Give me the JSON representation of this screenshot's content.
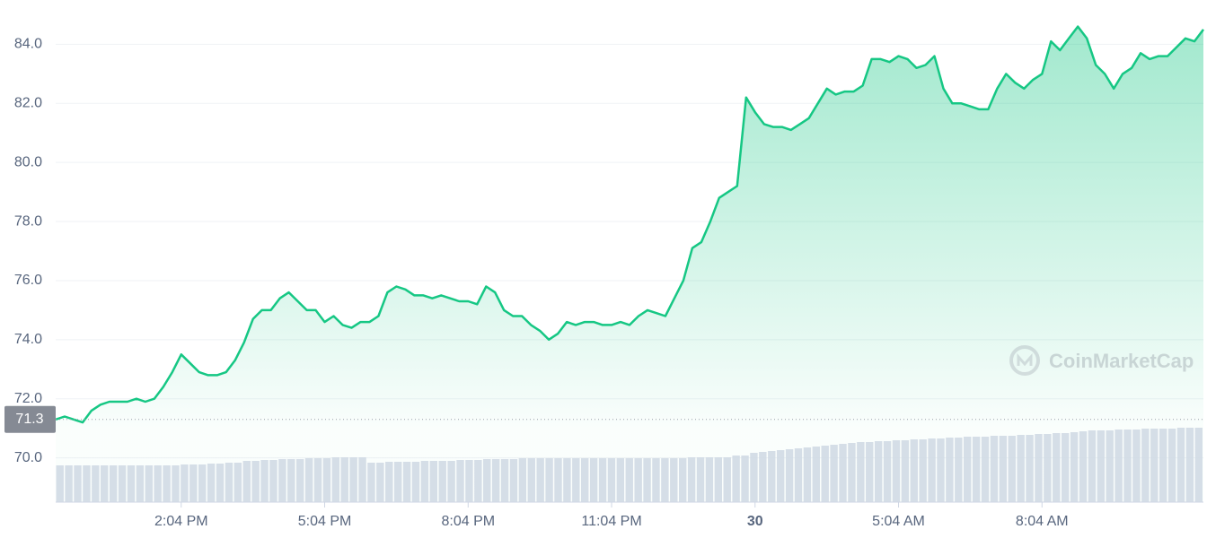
{
  "chart_data": {
    "type": "line",
    "color": "#16c784",
    "values": [
      71.3,
      71.4,
      71.3,
      71.2,
      71.6,
      71.8,
      71.9,
      71.9,
      71.9,
      72.0,
      71.9,
      72.0,
      72.4,
      72.9,
      73.5,
      73.2,
      72.9,
      72.8,
      72.8,
      72.9,
      73.3,
      73.9,
      74.7,
      75.0,
      75.0,
      75.4,
      75.6,
      75.3,
      75.0,
      75.0,
      74.6,
      74.8,
      74.5,
      74.4,
      74.6,
      74.6,
      74.8,
      75.6,
      75.8,
      75.7,
      75.5,
      75.5,
      75.4,
      75.5,
      75.4,
      75.3,
      75.3,
      75.2,
      75.8,
      75.6,
      75.0,
      74.8,
      74.8,
      74.5,
      74.3,
      74.0,
      74.2,
      74.6,
      74.5,
      74.6,
      74.6,
      74.5,
      74.5,
      74.6,
      74.5,
      74.8,
      75.0,
      74.9,
      74.8,
      75.4,
      76.0,
      77.1,
      77.3,
      78.0,
      78.8,
      79.0,
      79.2,
      82.2,
      81.7,
      81.3,
      81.2,
      81.2,
      81.1,
      81.3,
      81.5,
      82.0,
      82.5,
      82.3,
      82.4,
      82.4,
      82.6,
      83.5,
      83.5,
      83.4,
      83.6,
      83.5,
      83.2,
      83.3,
      83.6,
      82.5,
      82.0,
      82.0,
      81.9,
      81.8,
      81.8,
      82.5,
      83.0,
      82.7,
      82.5,
      82.8,
      83.0,
      84.1,
      83.8,
      84.2,
      84.6,
      84.2,
      83.3,
      83.0,
      82.5,
      83.0,
      83.2,
      83.7,
      83.5,
      83.6,
      83.6,
      83.9,
      84.2,
      84.1,
      84.5
    ],
    "volume": [
      41,
      41,
      41,
      41,
      41,
      41,
      41,
      41,
      41,
      41,
      41,
      41,
      41,
      41,
      42,
      42,
      42,
      43,
      43,
      44,
      44,
      46,
      46,
      47,
      47,
      48,
      48,
      48,
      49,
      49,
      49,
      50,
      50,
      50,
      50,
      44,
      44,
      45,
      45,
      45,
      45,
      46,
      46,
      46,
      46,
      47,
      47,
      47,
      48,
      48,
      48,
      48,
      49,
      49,
      49,
      49,
      49,
      49,
      49,
      49,
      49,
      49,
      49,
      49,
      49,
      49,
      49,
      49,
      49,
      49,
      49,
      50,
      50,
      50,
      50,
      50,
      52,
      52,
      55,
      56,
      57,
      58,
      59,
      60,
      61,
      62,
      63,
      64,
      65,
      66,
      67,
      67,
      68,
      68,
      69,
      69,
      70,
      70,
      71,
      71,
      72,
      72,
      73,
      73,
      73,
      74,
      74,
      74,
      75,
      75,
      76,
      76,
      77,
      77,
      78,
      79,
      80,
      80,
      80,
      81,
      81,
      81,
      82,
      82,
      82,
      82,
      83,
      83,
      83
    ],
    "baseline": 71.3,
    "watermark": "CoinMarketCap",
    "xlim": [
      0,
      128
    ],
    "ylim": [
      68.5,
      85.5
    ],
    "yticks": [
      {
        "value": 70,
        "label": "70.0"
      },
      {
        "value": 72,
        "label": "72.0"
      },
      {
        "value": 74,
        "label": "74.0"
      },
      {
        "value": 76,
        "label": "76.0"
      },
      {
        "value": 78,
        "label": "78.0"
      },
      {
        "value": 80,
        "label": "80.0"
      },
      {
        "value": 82,
        "label": "82.0"
      },
      {
        "value": 84,
        "label": "84.0"
      }
    ],
    "xticks": [
      {
        "value": 14,
        "label": "2:04 PM"
      },
      {
        "value": 30,
        "label": "5:04 PM"
      },
      {
        "value": 46,
        "label": "8:04 PM"
      },
      {
        "value": 62,
        "label": "11:04 PM"
      },
      {
        "value": 78,
        "label": "30",
        "bold": true
      },
      {
        "value": 94,
        "label": "5:04 AM"
      },
      {
        "value": 110,
        "label": "8:04 AM"
      }
    ],
    "grid": true
  }
}
